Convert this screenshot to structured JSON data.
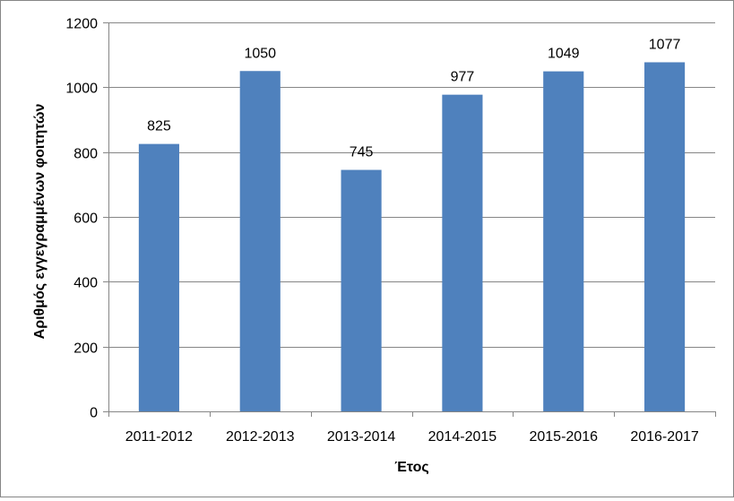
{
  "chart_data": {
    "type": "bar",
    "categories": [
      "2011-2012",
      "2012-2013",
      "2013-2014",
      "2014-2015",
      "2015-2016",
      "2016-2017"
    ],
    "values": [
      825,
      1050,
      745,
      977,
      1049,
      1077
    ],
    "data_labels": [
      "825",
      "1050",
      "745",
      "977",
      "1049",
      "1077"
    ],
    "xlabel": "Έτος",
    "ylabel": "Αριθμός εγγεγραμμένων φοιτητών",
    "ylim": [
      0,
      1200
    ],
    "yticks": [
      0,
      200,
      400,
      600,
      800,
      1000,
      1200
    ],
    "grid": true,
    "legend": "none",
    "bar_color": "#4F81BD",
    "grid_color": "#868686",
    "axis_color": "#868686"
  }
}
